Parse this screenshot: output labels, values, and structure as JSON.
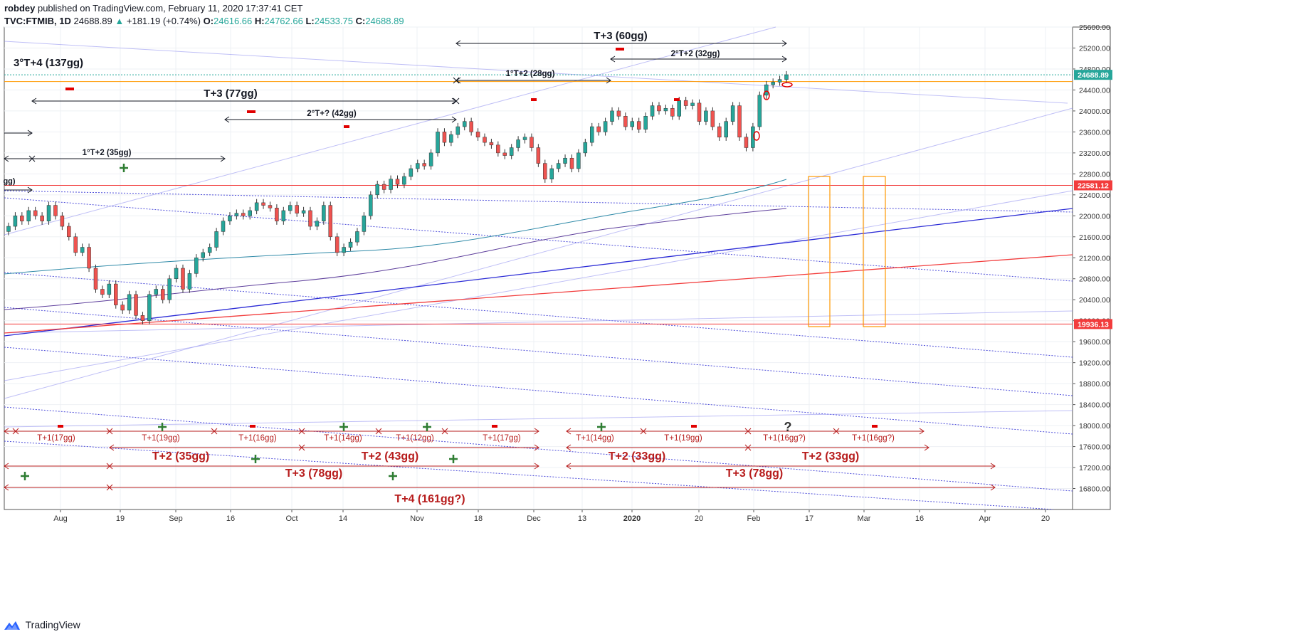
{
  "header": {
    "author": "robdey",
    "published_text": "published on TradingView.com, February 11, 2020 17:37:41 CET",
    "symbol": "TVC:FTMIB, 1D",
    "last": "24688.89",
    "arrow": "▲",
    "change": "+181.19 (+0.74%)",
    "o_label": "O:",
    "o_value": "24616.66",
    "h_label": "H:",
    "h_value": "24762.66",
    "l_label": "L:",
    "l_value": "24533.75",
    "c_label": "C:",
    "c_value": "24688.89"
  },
  "footer": {
    "brand": "TradingView"
  },
  "colors": {
    "up": "#26a69a",
    "down": "#ef5350",
    "annotation_black": "#131722",
    "annotation_red": "#b71c1c",
    "green_plus": "#2e7d32",
    "orange": "#ff9800",
    "blue_line": "#2b2bd6",
    "red_line": "#f23c3c",
    "teal_ma": "#2f8aa8",
    "purple_ma": "#5e3f9c"
  },
  "chart_data": {
    "type": "candlestick",
    "title": "",
    "ylim": [
      16400,
      25600
    ],
    "y_ticks": [
      16800,
      17200,
      17600,
      18000,
      18400,
      18800,
      19200,
      19600,
      20000,
      20400,
      20800,
      21200,
      21600,
      22000,
      22400,
      22800,
      23200,
      23600,
      24000,
      24400,
      24800,
      25200,
      25600
    ],
    "y_tick_labels": [
      "16800.00",
      "17200.00",
      "17600.00",
      "18000.00",
      "18400.00",
      "18800.00",
      "19200.00",
      "19600.00",
      "20000.00",
      "20400.00",
      "20800.00",
      "21200.00",
      "21600.00",
      "22000.00",
      "22400.00",
      "22800.00",
      "23200.00",
      "23600.00",
      "24000.00",
      "24400.00",
      "24800.00",
      "25200.00",
      "25600.00"
    ],
    "x_ticks": [
      "Aug",
      "19",
      "Sep",
      "16",
      "Oct",
      "14",
      "Nov",
      "18",
      "Dec",
      "13",
      "2020",
      "20",
      "Feb",
      "17",
      "Mar",
      "16",
      "Apr",
      "20"
    ],
    "price_labels": [
      {
        "value": 24688.89,
        "label": "24688.89",
        "color": "#26a69a"
      },
      {
        "value": 22581.12,
        "label": "22581.12",
        "color": "#f23c3c"
      },
      {
        "value": 19936.13,
        "label": "19936.13",
        "color": "#f23c3c"
      }
    ],
    "candles_close": [
      21800,
      22000,
      21900,
      22100,
      22000,
      21900,
      22200,
      22000,
      21800,
      21600,
      21300,
      21400,
      21000,
      20600,
      20500,
      20700,
      20300,
      20200,
      20500,
      20100,
      20000,
      20500,
      20600,
      20400,
      20800,
      21000,
      20600,
      20900,
      21200,
      21300,
      21400,
      21700,
      21900,
      22000,
      22050,
      22000,
      22100,
      22250,
      22200,
      22150,
      21900,
      22100,
      22200,
      22050,
      22100,
      21800,
      21900,
      22200,
      21600,
      21300,
      21400,
      21500,
      21700,
      22000,
      22400,
      22600,
      22500,
      22700,
      22600,
      22750,
      22900,
      23000,
      22950,
      23200,
      23600,
      23400,
      23550,
      23700,
      23800,
      23600,
      23500,
      23400,
      23350,
      23200,
      23150,
      23300,
      23450,
      23500,
      23300,
      23000,
      22700,
      22900,
      23000,
      23100,
      22900,
      23200,
      23400,
      23700,
      23600,
      23800,
      24000,
      23900,
      23700,
      23800,
      23650,
      23900,
      24100,
      24000,
      24050,
      23900,
      24200,
      24100,
      24150,
      23800,
      24000,
      23700,
      23500,
      23800,
      24100,
      23500,
      23300,
      23700,
      24300,
      24500,
      24550,
      24600,
      24690
    ],
    "annotations_top": [
      "3°T+4 (137gg)",
      "T+3 (60gg)",
      "2°T+2 (32gg)",
      "1°T+2 (28gg)",
      "T+3 (77gg)",
      "2°T+? (42gg)",
      "1°T+2 (35gg)",
      "gg)"
    ],
    "annotations_bottom": [
      "T+1(17gg)",
      "T+1(19gg)",
      "T+1(16gg)",
      "T+1(14gg)",
      "T+1(12gg)",
      "T+1(17gg)",
      "T+1(14gg)",
      "T+1(19gg)",
      "T+1(16gg?)",
      "T+1(16gg?)",
      "T+2 (35gg)",
      "T+2 (43gg)",
      "T+2 (33gg)",
      "T+2 (33gg)",
      "T+3 (78gg)",
      "T+3 (78gg)",
      "T+4 (161gg?)",
      "?"
    ]
  }
}
